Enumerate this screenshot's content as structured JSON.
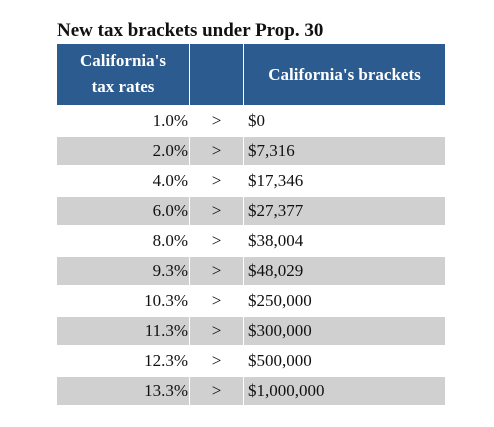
{
  "title": "New tax brackets under Prop. 30",
  "table": {
    "headers": {
      "rates_line1": "California's",
      "rates_line2": "tax rates",
      "middle": "",
      "brackets": "California's brackets"
    },
    "rows": [
      {
        "rate": "1.0%",
        "op": ">",
        "bracket": "$0"
      },
      {
        "rate": "2.0%",
        "op": ">",
        "bracket": "$7,316"
      },
      {
        "rate": "4.0%",
        "op": ">",
        "bracket": "$17,346"
      },
      {
        "rate": "6.0%",
        "op": ">",
        "bracket": "$27,377"
      },
      {
        "rate": "8.0%",
        "op": ">",
        "bracket": "$38,004"
      },
      {
        "rate": "9.3%",
        "op": ">",
        "bracket": "$48,029"
      },
      {
        "rate": "10.3%",
        "op": ">",
        "bracket": "$250,000"
      },
      {
        "rate": "11.3%",
        "op": ">",
        "bracket": "$300,000"
      },
      {
        "rate": "12.3%",
        "op": ">",
        "bracket": "$500,000"
      },
      {
        "rate": "13.3%",
        "op": ">",
        "bracket": "$1,000,000"
      }
    ]
  },
  "colors": {
    "header_bg": "#2c5b8f",
    "header_text": "#ffffff",
    "shaded_row": "#d0d0d0"
  }
}
